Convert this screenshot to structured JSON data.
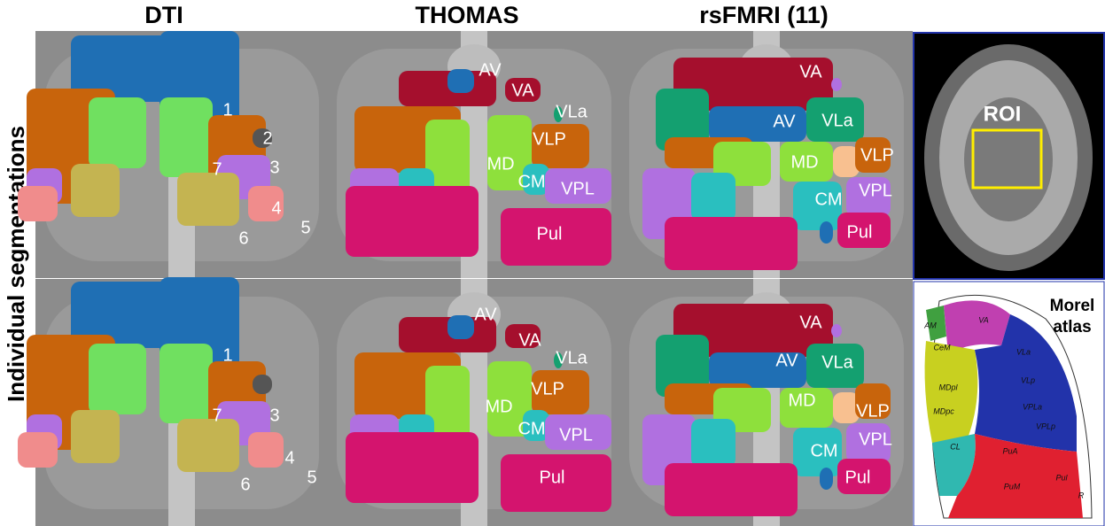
{
  "headers": [
    "DTI",
    "THOMAS",
    "rsFMRI (11)"
  ],
  "row_label": "Individual segmentations",
  "panels": [
    {
      "labels": [
        "1",
        "2",
        "3",
        "7",
        "4",
        "5",
        "6"
      ]
    },
    {
      "labels": [
        "AV",
        "VA",
        "VLa",
        "VLP",
        "MD",
        "CM",
        "VPL",
        "Pul"
      ]
    },
    {
      "labels": [
        "VA",
        "AV",
        "VLa",
        "MD",
        "VLP",
        "CM",
        "VPL",
        "Pul"
      ]
    },
    {
      "labels": [
        "1",
        "7",
        "3",
        "4",
        "5",
        "6"
      ]
    },
    {
      "labels": [
        "AV",
        "VA",
        "VLa",
        "VLP",
        "MD",
        "CM",
        "VPL",
        "Pul"
      ]
    },
    {
      "labels": [
        "VA",
        "AV",
        "VLa",
        "MD",
        "VLP",
        "CM",
        "VPL",
        "Pul"
      ]
    }
  ],
  "mri": {
    "label": "ROI"
  },
  "atlas": {
    "title": [
      "Morel",
      "atlas"
    ],
    "labels": [
      "AM",
      "VA",
      "CeM",
      "VLa",
      "MDpl",
      "VLp",
      "MDpc",
      "VPLa",
      "VPLp",
      "CL",
      "PuA",
      "Pul",
      "PuM",
      "R"
    ]
  }
}
